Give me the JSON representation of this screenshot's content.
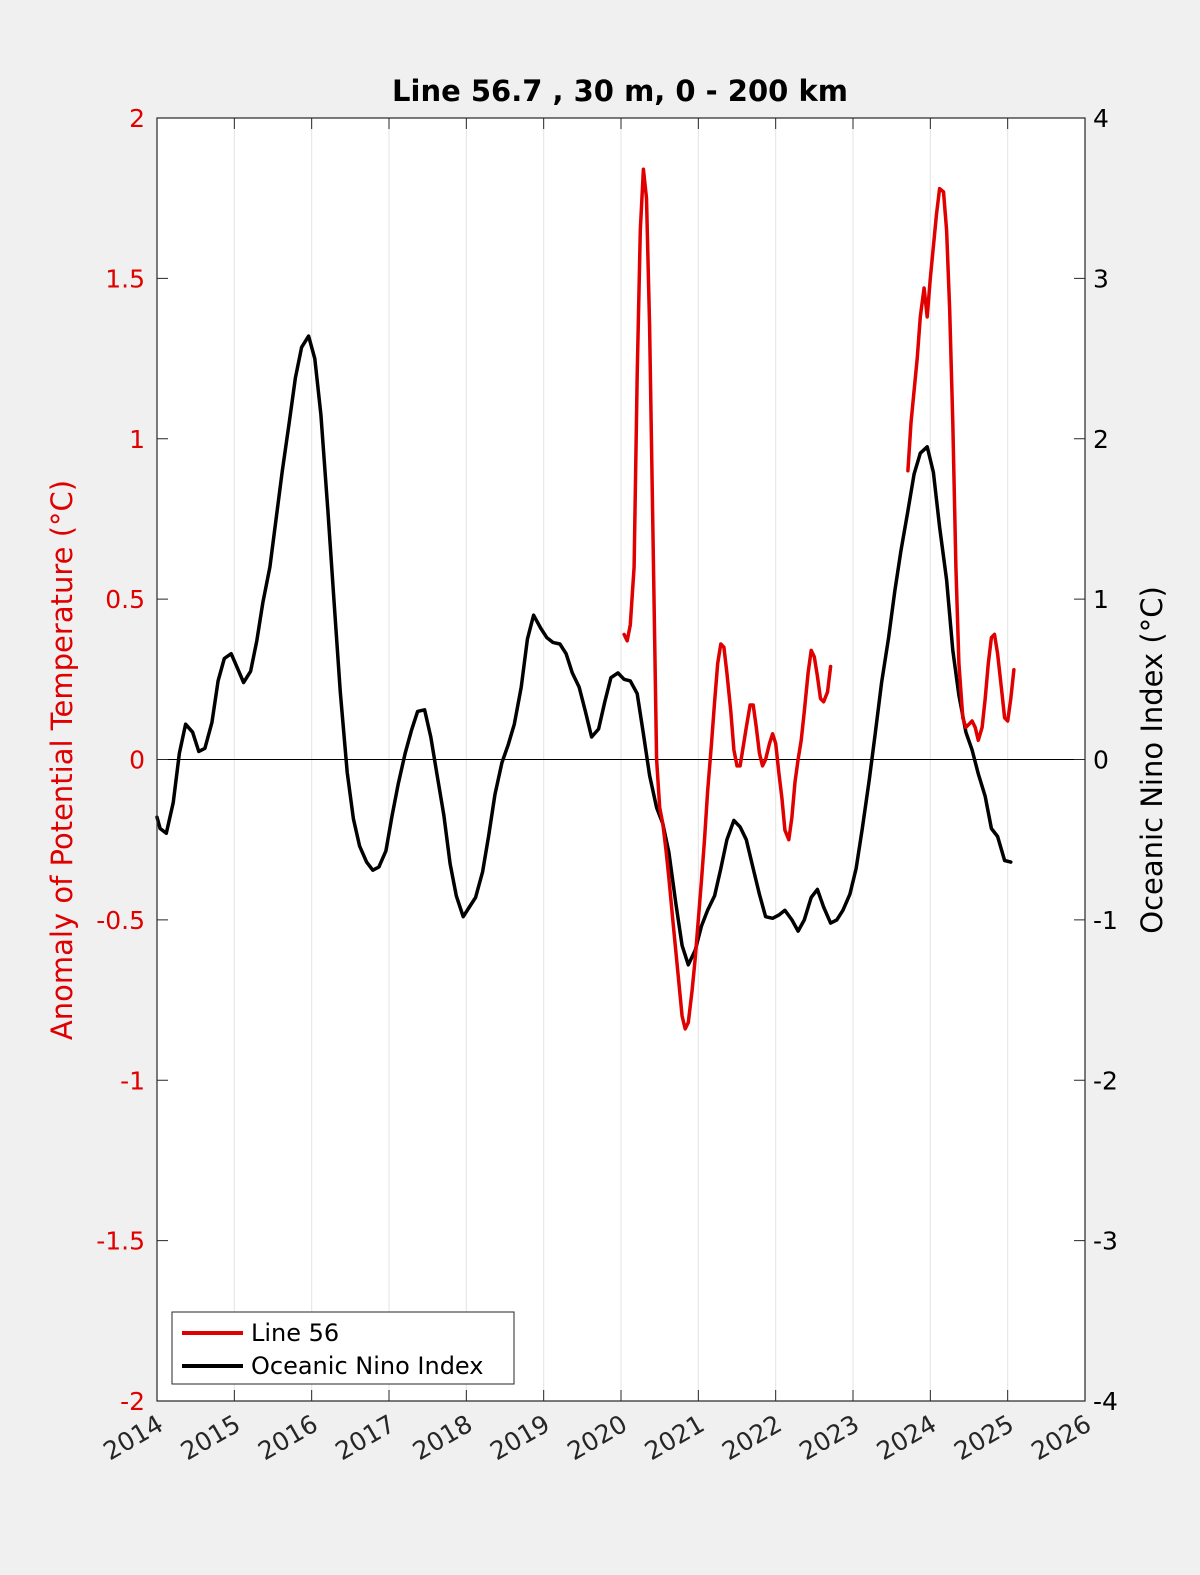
{
  "chart_data": {
    "type": "line",
    "title": "Line 56.7 , 30 m, 0 - 200 km",
    "ylabel_left": "Anomaly of Potential Temperature (°C)",
    "ylabel_right": "Oceanic Nino Index (°C)",
    "xlabel": "",
    "xlim": [
      2014,
      2026
    ],
    "ylim_left": [
      -2,
      2
    ],
    "ylim_right": [
      -4,
      4
    ],
    "x_ticks": [
      "2014",
      "2015",
      "2016",
      "2017",
      "2018",
      "2019",
      "2020",
      "2021",
      "2022",
      "2023",
      "2024",
      "2025",
      "2026"
    ],
    "y_left_ticks": [
      "-2",
      "-1.5",
      "-1",
      "-0.5",
      "0",
      "0.5",
      "1",
      "1.5",
      "2"
    ],
    "y_right_ticks": [
      "-4",
      "-3",
      "-2",
      "-1",
      "0",
      "1",
      "2",
      "3",
      "4"
    ],
    "grid": "vertical",
    "legend_position": "bottom-left",
    "colors": {
      "line56": "#e00000",
      "oni": "#000000",
      "left_axis": "#e00000",
      "right_axis": "#000000"
    },
    "series": [
      {
        "name": "Line 56",
        "axis": "left",
        "segments": [
          [
            [
              2020.04,
              0.39
            ],
            [
              2020.08,
              0.37
            ],
            [
              2020.12,
              0.42
            ],
            [
              2020.17,
              0.6
            ],
            [
              2020.21,
              1.2
            ],
            [
              2020.25,
              1.65
            ],
            [
              2020.29,
              1.84
            ],
            [
              2020.33,
              1.75
            ],
            [
              2020.37,
              1.35
            ],
            [
              2020.42,
              0.6
            ],
            [
              2020.46,
              0.0
            ],
            [
              2020.5,
              -0.15
            ],
            [
              2020.54,
              -0.2
            ],
            [
              2020.58,
              -0.28
            ],
            [
              2020.62,
              -0.37
            ],
            [
              2020.67,
              -0.5
            ],
            [
              2020.71,
              -0.6
            ],
            [
              2020.75,
              -0.7
            ],
            [
              2020.79,
              -0.8
            ],
            [
              2020.83,
              -0.84
            ],
            [
              2020.87,
              -0.82
            ],
            [
              2020.92,
              -0.72
            ],
            [
              2020.96,
              -0.62
            ],
            [
              2021.0,
              -0.5
            ],
            [
              2021.04,
              -0.38
            ],
            [
              2021.08,
              -0.25
            ],
            [
              2021.12,
              -0.1
            ],
            [
              2021.17,
              0.05
            ],
            [
              2021.21,
              0.18
            ],
            [
              2021.25,
              0.3
            ],
            [
              2021.29,
              0.36
            ],
            [
              2021.33,
              0.35
            ],
            [
              2021.37,
              0.27
            ],
            [
              2021.42,
              0.15
            ],
            [
              2021.46,
              0.03
            ],
            [
              2021.5,
              -0.02
            ],
            [
              2021.54,
              -0.02
            ],
            [
              2021.58,
              0.04
            ],
            [
              2021.62,
              0.1
            ],
            [
              2021.67,
              0.17
            ],
            [
              2021.71,
              0.17
            ],
            [
              2021.75,
              0.1
            ],
            [
              2021.79,
              0.02
            ],
            [
              2021.83,
              -0.02
            ],
            [
              2021.87,
              0.0
            ],
            [
              2021.92,
              0.05
            ],
            [
              2021.96,
              0.08
            ],
            [
              2022.0,
              0.05
            ],
            [
              2022.04,
              -0.04
            ],
            [
              2022.08,
              -0.12
            ],
            [
              2022.12,
              -0.22
            ],
            [
              2022.17,
              -0.25
            ],
            [
              2022.21,
              -0.18
            ],
            [
              2022.25,
              -0.07
            ],
            [
              2022.29,
              0.0
            ],
            [
              2022.33,
              0.06
            ],
            [
              2022.37,
              0.15
            ],
            [
              2022.42,
              0.27
            ],
            [
              2022.46,
              0.34
            ],
            [
              2022.5,
              0.32
            ],
            [
              2022.54,
              0.26
            ],
            [
              2022.58,
              0.19
            ],
            [
              2022.62,
              0.18
            ],
            [
              2022.67,
              0.21
            ],
            [
              2022.71,
              0.29
            ]
          ],
          [
            [
              2023.71,
              0.9
            ],
            [
              2023.75,
              1.05
            ],
            [
              2023.79,
              1.15
            ],
            [
              2023.83,
              1.25
            ],
            [
              2023.87,
              1.38
            ],
            [
              2023.92,
              1.47
            ],
            [
              2023.96,
              1.38
            ],
            [
              2024.0,
              1.5
            ],
            [
              2024.04,
              1.6
            ],
            [
              2024.08,
              1.7
            ],
            [
              2024.12,
              1.78
            ],
            [
              2024.17,
              1.77
            ],
            [
              2024.21,
              1.65
            ],
            [
              2024.25,
              1.4
            ],
            [
              2024.29,
              1.05
            ],
            [
              2024.33,
              0.6
            ],
            [
              2024.37,
              0.3
            ],
            [
              2024.42,
              0.13
            ],
            [
              2024.46,
              0.1
            ],
            [
              2024.5,
              0.11
            ],
            [
              2024.54,
              0.12
            ],
            [
              2024.58,
              0.1
            ],
            [
              2024.62,
              0.06
            ],
            [
              2024.67,
              0.1
            ],
            [
              2024.71,
              0.19
            ],
            [
              2024.75,
              0.3
            ],
            [
              2024.79,
              0.38
            ],
            [
              2024.83,
              0.39
            ],
            [
              2024.87,
              0.33
            ],
            [
              2024.92,
              0.22
            ],
            [
              2024.96,
              0.13
            ],
            [
              2025.0,
              0.12
            ],
            [
              2025.04,
              0.19
            ],
            [
              2025.08,
              0.28
            ]
          ]
        ]
      },
      {
        "name": "Oceanic Nino Index",
        "axis": "right",
        "segments": [
          [
            [
              2014.0,
              -0.36
            ],
            [
              2014.04,
              -0.43
            ],
            [
              2014.12,
              -0.46
            ],
            [
              2014.21,
              -0.27
            ],
            [
              2014.29,
              0.04
            ],
            [
              2014.37,
              0.22
            ],
            [
              2014.46,
              0.17
            ],
            [
              2014.54,
              0.05
            ],
            [
              2014.62,
              0.07
            ],
            [
              2014.71,
              0.23
            ],
            [
              2014.79,
              0.49
            ],
            [
              2014.87,
              0.63
            ],
            [
              2014.96,
              0.66
            ],
            [
              2015.04,
              0.57
            ],
            [
              2015.12,
              0.48
            ],
            [
              2015.21,
              0.55
            ],
            [
              2015.29,
              0.74
            ],
            [
              2015.37,
              0.98
            ],
            [
              2015.46,
              1.2
            ],
            [
              2015.54,
              1.5
            ],
            [
              2015.62,
              1.8
            ],
            [
              2015.71,
              2.1
            ],
            [
              2015.79,
              2.38
            ],
            [
              2015.87,
              2.57
            ],
            [
              2015.96,
              2.64
            ],
            [
              2016.04,
              2.5
            ],
            [
              2016.12,
              2.15
            ],
            [
              2016.21,
              1.55
            ],
            [
              2016.29,
              0.98
            ],
            [
              2016.37,
              0.42
            ],
            [
              2016.46,
              -0.08
            ],
            [
              2016.54,
              -0.37
            ],
            [
              2016.62,
              -0.54
            ],
            [
              2016.71,
              -0.64
            ],
            [
              2016.79,
              -0.69
            ],
            [
              2016.87,
              -0.67
            ],
            [
              2016.96,
              -0.57
            ],
            [
              2017.04,
              -0.35
            ],
            [
              2017.12,
              -0.15
            ],
            [
              2017.21,
              0.04
            ],
            [
              2017.29,
              0.18
            ],
            [
              2017.37,
              0.3
            ],
            [
              2017.46,
              0.31
            ],
            [
              2017.54,
              0.14
            ],
            [
              2017.62,
              -0.09
            ],
            [
              2017.71,
              -0.35
            ],
            [
              2017.79,
              -0.65
            ],
            [
              2017.87,
              -0.85
            ],
            [
              2017.96,
              -0.98
            ],
            [
              2018.04,
              -0.92
            ],
            [
              2018.12,
              -0.86
            ],
            [
              2018.21,
              -0.7
            ],
            [
              2018.29,
              -0.47
            ],
            [
              2018.37,
              -0.22
            ],
            [
              2018.46,
              -0.02
            ],
            [
              2018.54,
              0.09
            ],
            [
              2018.62,
              0.22
            ],
            [
              2018.71,
              0.45
            ],
            [
              2018.79,
              0.75
            ],
            [
              2018.87,
              0.9
            ],
            [
              2018.96,
              0.82
            ],
            [
              2019.04,
              0.76
            ],
            [
              2019.12,
              0.73
            ],
            [
              2019.21,
              0.72
            ],
            [
              2019.29,
              0.66
            ],
            [
              2019.37,
              0.54
            ],
            [
              2019.46,
              0.45
            ],
            [
              2019.54,
              0.3
            ],
            [
              2019.62,
              0.14
            ],
            [
              2019.71,
              0.19
            ],
            [
              2019.79,
              0.36
            ],
            [
              2019.87,
              0.51
            ],
            [
              2019.96,
              0.54
            ],
            [
              2020.04,
              0.5
            ],
            [
              2020.12,
              0.49
            ],
            [
              2020.21,
              0.41
            ],
            [
              2020.29,
              0.16
            ],
            [
              2020.37,
              -0.1
            ],
            [
              2020.46,
              -0.3
            ],
            [
              2020.54,
              -0.4
            ],
            [
              2020.62,
              -0.58
            ],
            [
              2020.71,
              -0.9
            ],
            [
              2020.79,
              -1.16
            ],
            [
              2020.87,
              -1.28
            ],
            [
              2020.96,
              -1.19
            ],
            [
              2021.04,
              -1.04
            ],
            [
              2021.12,
              -0.94
            ],
            [
              2021.21,
              -0.85
            ],
            [
              2021.29,
              -0.68
            ],
            [
              2021.37,
              -0.5
            ],
            [
              2021.46,
              -0.38
            ],
            [
              2021.54,
              -0.42
            ],
            [
              2021.62,
              -0.5
            ],
            [
              2021.71,
              -0.68
            ],
            [
              2021.79,
              -0.84
            ],
            [
              2021.87,
              -0.98
            ],
            [
              2021.96,
              -0.99
            ],
            [
              2022.04,
              -0.97
            ],
            [
              2022.12,
              -0.94
            ],
            [
              2022.21,
              -1.0
            ],
            [
              2022.29,
              -1.07
            ],
            [
              2022.37,
              -1.0
            ],
            [
              2022.46,
              -0.86
            ],
            [
              2022.54,
              -0.81
            ],
            [
              2022.62,
              -0.92
            ],
            [
              2022.71,
              -1.02
            ],
            [
              2022.79,
              -1.0
            ],
            [
              2022.87,
              -0.94
            ],
            [
              2022.96,
              -0.84
            ],
            [
              2023.04,
              -0.68
            ],
            [
              2023.12,
              -0.43
            ],
            [
              2023.21,
              -0.13
            ],
            [
              2023.29,
              0.17
            ],
            [
              2023.37,
              0.48
            ],
            [
              2023.46,
              0.76
            ],
            [
              2023.54,
              1.05
            ],
            [
              2023.62,
              1.3
            ],
            [
              2023.71,
              1.55
            ],
            [
              2023.79,
              1.78
            ],
            [
              2023.87,
              1.91
            ],
            [
              2023.96,
              1.95
            ],
            [
              2024.04,
              1.79
            ],
            [
              2024.12,
              1.45
            ],
            [
              2024.21,
              1.12
            ],
            [
              2024.29,
              0.68
            ],
            [
              2024.37,
              0.4
            ],
            [
              2024.46,
              0.17
            ],
            [
              2024.54,
              0.06
            ],
            [
              2024.62,
              -0.09
            ],
            [
              2024.71,
              -0.23
            ],
            [
              2024.79,
              -0.43
            ],
            [
              2024.87,
              -0.48
            ],
            [
              2024.96,
              -0.63
            ],
            [
              2025.04,
              -0.64
            ]
          ]
        ]
      }
    ]
  }
}
